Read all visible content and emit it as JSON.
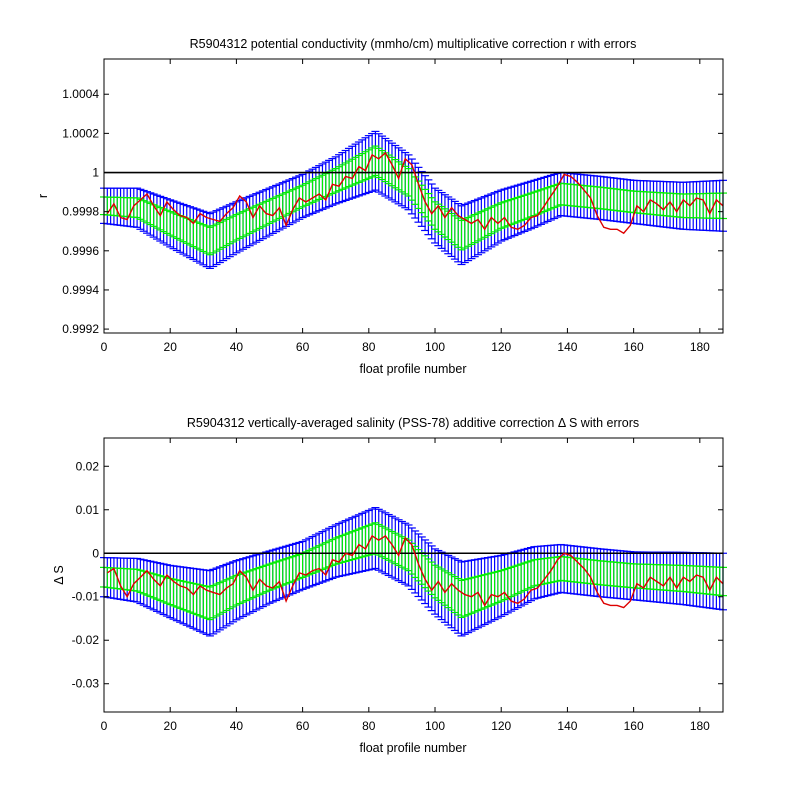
{
  "chart_data": [
    {
      "type": "line",
      "title": "R5904312 potential conductivity (mmho/cm) multiplicative correction r with errors",
      "xlabel": "float profile number",
      "ylabel": "r",
      "xlim": [
        0,
        187
      ],
      "ylim": [
        0.99918,
        1.00058
      ],
      "xticks": [
        0,
        20,
        40,
        60,
        80,
        100,
        120,
        140,
        160,
        180
      ],
      "yticks": [
        0.9992,
        0.9994,
        0.9996,
        0.9998,
        1,
        1.0002,
        1.0004
      ],
      "ytick_labels": [
        "0.9992",
        "0.9994",
        "0.9996",
        "0.9998",
        "1",
        "1.0002",
        "1.0004"
      ],
      "reference_line": 1,
      "grid": false,
      "series": [
        {
          "role": "fit with 2x error bars",
          "color": "#0000ff",
          "x": [
            0,
            10,
            20,
            32,
            40,
            50,
            60,
            70,
            82,
            92,
            100,
            108,
            120,
            130,
            138,
            150,
            160,
            175,
            187
          ],
          "y": [
            0.99983,
            0.99982,
            0.99974,
            0.99965,
            0.99972,
            0.9998,
            0.99988,
            0.99996,
            1.00006,
            0.99995,
            0.99978,
            0.99968,
            0.99978,
            0.99984,
            0.99989,
            0.99987,
            0.99985,
            0.99983,
            0.99983
          ],
          "err": [
            9e-05,
            0.0001,
            0.00012,
            0.00014,
            0.00013,
            0.00012,
            0.00011,
            0.00012,
            0.00015,
            0.00014,
            0.00014,
            0.00015,
            0.00013,
            0.00012,
            0.00011,
            0.00011,
            0.00011,
            0.00012,
            0.00013
          ]
        },
        {
          "role": "fit with 1x error bars",
          "color": "#00ee00",
          "x": [
            0,
            10,
            20,
            32,
            40,
            50,
            60,
            70,
            82,
            92,
            100,
            108,
            120,
            130,
            138,
            150,
            160,
            175,
            187
          ],
          "y": [
            0.99983,
            0.99982,
            0.99974,
            0.99965,
            0.99972,
            0.9998,
            0.99988,
            0.99996,
            1.00006,
            0.99995,
            0.99978,
            0.99968,
            0.99978,
            0.99984,
            0.99989,
            0.99987,
            0.99985,
            0.99983,
            0.99983
          ],
          "err": [
            4.5e-05,
            5e-05,
            6e-05,
            7e-05,
            6.5e-05,
            6e-05,
            5.5e-05,
            6e-05,
            7.5e-05,
            7e-05,
            7e-05,
            7.5e-05,
            6.5e-05,
            6e-05,
            5.5e-05,
            5.5e-05,
            5.5e-05,
            6e-05,
            6.5e-05
          ]
        },
        {
          "role": "profile-by-profile correction",
          "color": "#dd0000",
          "x": [
            1,
            3,
            5,
            7,
            9,
            11,
            13,
            15,
            17,
            19,
            21,
            23,
            25,
            27,
            29,
            31,
            33,
            35,
            37,
            39,
            41,
            43,
            45,
            47,
            49,
            51,
            53,
            55,
            57,
            59,
            61,
            63,
            65,
            67,
            69,
            71,
            73,
            75,
            77,
            79,
            81,
            83,
            85,
            87,
            89,
            91,
            93,
            95,
            97,
            99,
            101,
            103,
            105,
            107,
            109,
            111,
            113,
            115,
            117,
            119,
            121,
            123,
            125,
            127,
            129,
            131,
            133,
            135,
            137,
            139,
            141,
            143,
            145,
            147,
            149,
            151,
            153,
            155,
            157,
            159,
            161,
            163,
            165,
            167,
            169,
            171,
            173,
            175,
            177,
            179,
            181,
            183,
            185,
            187
          ],
          "y": [
            0.99979,
            0.99984,
            0.99977,
            0.99976,
            0.99983,
            0.99986,
            0.99989,
            0.99983,
            0.99978,
            0.99985,
            0.99981,
            0.99978,
            0.99977,
            0.99974,
            0.99979,
            0.99977,
            0.99976,
            0.99975,
            0.99979,
            0.99982,
            0.99988,
            0.99985,
            0.99977,
            0.99983,
            0.99979,
            0.99978,
            0.99982,
            0.99973,
            0.99981,
            0.99987,
            0.99985,
            0.99987,
            0.99989,
            0.99986,
            0.99994,
            0.99993,
            0.99998,
            0.99997,
            1.00003,
            1.00001,
            1.00009,
            1.00007,
            1.0001,
            1.00004,
            0.99997,
            1.00007,
            1.00004,
            0.99994,
            0.99985,
            0.99979,
            0.99983,
            0.99977,
            0.99982,
            0.99978,
            0.99976,
            0.99974,
            0.99976,
            0.99971,
            0.99977,
            0.99974,
            0.99977,
            0.99972,
            0.99971,
            0.99973,
            0.99977,
            0.99978,
            0.99983,
            0.99988,
            0.99993,
            0.99999,
            0.99998,
            0.99995,
            0.99991,
            0.99987,
            0.99978,
            0.99972,
            0.99971,
            0.99971,
            0.99969,
            0.99973,
            0.99983,
            0.9998,
            0.99986,
            0.99984,
            0.99981,
            0.99985,
            0.9998,
            0.99986,
            0.99983,
            0.99987,
            0.99986,
            0.99979,
            0.99986,
            0.99983
          ]
        }
      ]
    },
    {
      "type": "line",
      "title": "R5904312 vertically-averaged salinity (PSS-78) additive correction Δ S with errors",
      "xlabel": "float profile number",
      "ylabel": "Δ S",
      "xlim": [
        0,
        187
      ],
      "ylim": [
        -0.0365,
        0.0265
      ],
      "xticks": [
        0,
        20,
        40,
        60,
        80,
        100,
        120,
        140,
        160,
        180
      ],
      "yticks": [
        -0.03,
        -0.02,
        -0.01,
        0,
        0.01,
        0.02
      ],
      "ytick_labels": [
        "-0.03",
        "-0.02",
        "-0.01",
        "0",
        "0.01",
        "0.02"
      ],
      "reference_line": 0,
      "grid": false,
      "series": [
        {
          "role": "fit with 2x error bars",
          "color": "#0000ff",
          "x": [
            0,
            10,
            20,
            32,
            40,
            50,
            60,
            70,
            82,
            92,
            100,
            108,
            120,
            130,
            138,
            150,
            160,
            175,
            187
          ],
          "y": [
            -0.0055,
            -0.0062,
            -0.0088,
            -0.0115,
            -0.0085,
            -0.0055,
            -0.0028,
            0.0005,
            0.0035,
            -0.0005,
            -0.0065,
            -0.0105,
            -0.0075,
            -0.0045,
            -0.0035,
            -0.0045,
            -0.0052,
            -0.0058,
            -0.0065
          ],
          "err": [
            0.0045,
            0.005,
            0.006,
            0.0075,
            0.0068,
            0.006,
            0.0055,
            0.006,
            0.007,
            0.007,
            0.0075,
            0.0085,
            0.007,
            0.006,
            0.0055,
            0.0055,
            0.0055,
            0.006,
            0.0065
          ]
        },
        {
          "role": "fit with 1x error bars",
          "color": "#00ee00",
          "x": [
            0,
            10,
            20,
            32,
            40,
            50,
            60,
            70,
            82,
            92,
            100,
            108,
            120,
            130,
            138,
            150,
            160,
            175,
            187
          ],
          "y": [
            -0.0055,
            -0.0062,
            -0.0088,
            -0.0115,
            -0.0085,
            -0.0055,
            -0.0028,
            0.0005,
            0.0035,
            -0.0005,
            -0.0065,
            -0.0105,
            -0.0075,
            -0.0045,
            -0.0035,
            -0.0045,
            -0.0052,
            -0.0058,
            -0.0065
          ],
          "err": [
            0.00225,
            0.0025,
            0.003,
            0.00375,
            0.0034,
            0.003,
            0.00275,
            0.003,
            0.0035,
            0.0035,
            0.00375,
            0.00425,
            0.0035,
            0.003,
            0.00275,
            0.00275,
            0.00275,
            0.003,
            0.00325
          ]
        },
        {
          "role": "profile-by-profile correction",
          "color": "#dd0000",
          "x": [
            1,
            3,
            5,
            7,
            9,
            11,
            13,
            15,
            17,
            19,
            21,
            23,
            25,
            27,
            29,
            31,
            33,
            35,
            37,
            39,
            41,
            43,
            45,
            47,
            49,
            51,
            53,
            55,
            57,
            59,
            61,
            63,
            65,
            67,
            69,
            71,
            73,
            75,
            77,
            79,
            81,
            83,
            85,
            87,
            89,
            91,
            93,
            95,
            97,
            99,
            101,
            103,
            105,
            107,
            109,
            111,
            113,
            115,
            117,
            119,
            121,
            123,
            125,
            127,
            129,
            131,
            133,
            135,
            137,
            139,
            141,
            143,
            145,
            147,
            149,
            151,
            153,
            155,
            157,
            159,
            161,
            163,
            165,
            167,
            169,
            171,
            173,
            175,
            177,
            179,
            181,
            183,
            185,
            187
          ],
          "y": [
            -0.0045,
            -0.0035,
            -0.0075,
            -0.01,
            -0.007,
            -0.0055,
            -0.004,
            -0.006,
            -0.0075,
            -0.005,
            -0.0065,
            -0.0075,
            -0.008,
            -0.0095,
            -0.0075,
            -0.0085,
            -0.009,
            -0.0095,
            -0.008,
            -0.007,
            -0.004,
            -0.0055,
            -0.0085,
            -0.006,
            -0.0075,
            -0.008,
            -0.0065,
            -0.011,
            -0.0075,
            -0.0045,
            -0.005,
            -0.004,
            -0.0035,
            -0.005,
            -0.0015,
            -0.002,
            0.0,
            -0.0005,
            0.002,
            0.001,
            0.004,
            0.003,
            0.004,
            0.002,
            -0.0005,
            0.0035,
            0.002,
            -0.0025,
            -0.006,
            -0.0085,
            -0.0065,
            -0.009,
            -0.007,
            -0.0085,
            -0.0095,
            -0.01,
            -0.009,
            -0.012,
            -0.0095,
            -0.01,
            -0.009,
            -0.011,
            -0.0115,
            -0.0105,
            -0.0085,
            -0.008,
            -0.006,
            -0.004,
            -0.0015,
            0.0,
            -0.0005,
            -0.002,
            -0.0035,
            -0.0055,
            -0.009,
            -0.0115,
            -0.012,
            -0.012,
            -0.0125,
            -0.011,
            -0.007,
            -0.008,
            -0.0055,
            -0.0065,
            -0.0075,
            -0.0055,
            -0.008,
            -0.0055,
            -0.0065,
            -0.005,
            -0.0055,
            -0.0085,
            -0.0055,
            -0.007
          ]
        }
      ]
    }
  ]
}
